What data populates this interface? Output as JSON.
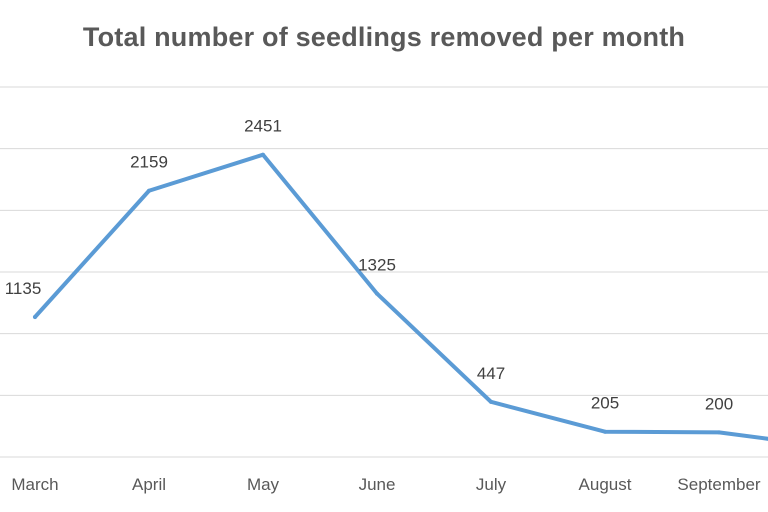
{
  "chart_data": {
    "type": "line",
    "title": "Total number of seedlings removed per month",
    "xlabel": "",
    "ylabel": "",
    "categories": [
      "March",
      "April",
      "May",
      "June",
      "July",
      "August",
      "September"
    ],
    "series": [
      {
        "values": [
          1135,
          2159,
          2451,
          1325,
          447,
          205,
          200
        ]
      }
    ],
    "data_labels": [
      "1135",
      "2159",
      "2451",
      "1325",
      "447",
      "205",
      "200"
    ],
    "ylim": [
      0,
      3000
    ],
    "grid": true,
    "legend": "none",
    "colors": {
      "series": "#5b9bd5",
      "grid": "#d9d9d9",
      "title": "#595959"
    }
  }
}
